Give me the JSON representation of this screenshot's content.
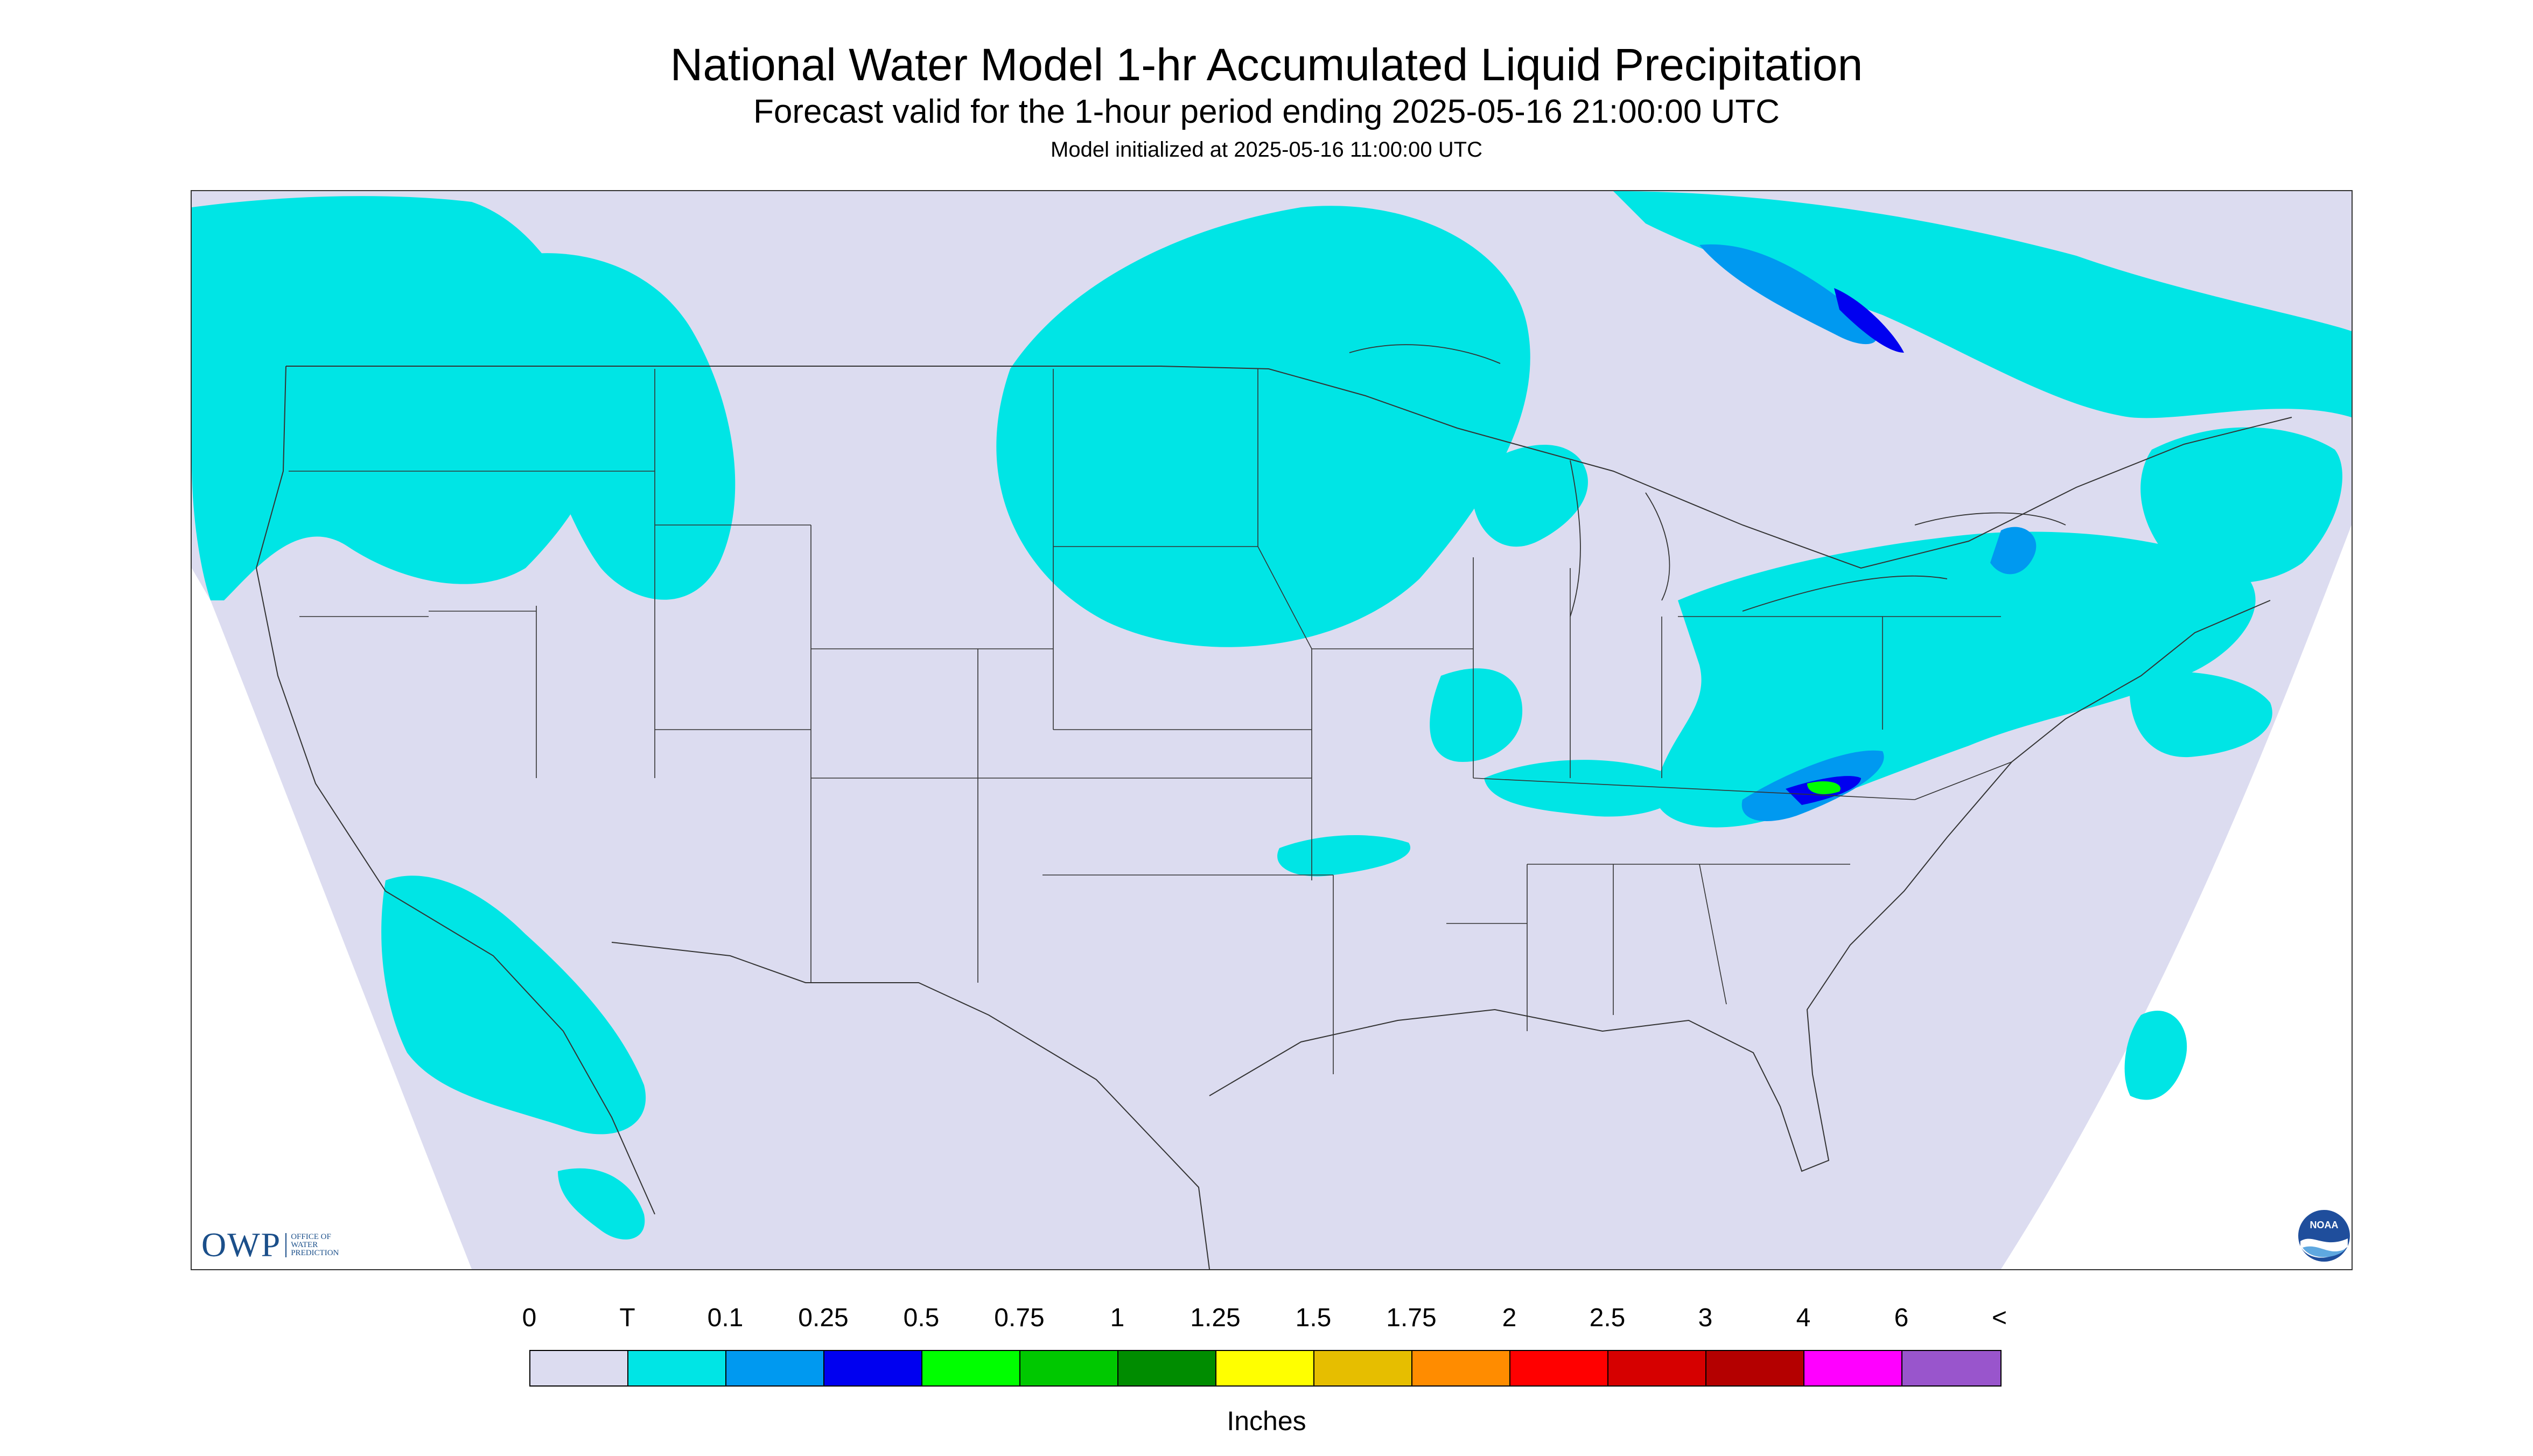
{
  "titles": {
    "main": "National Water Model 1-hr Accumulated Liquid Precipitation",
    "sub": "Forecast valid for the 1-hour period ending 2025-05-16 21:00:00 UTC",
    "init": "Model initialized at 2025-05-16 11:00:00 UTC"
  },
  "logos": {
    "owp_mark": "OWP",
    "owp_text": "OFFICE OF WATER PREDICTION",
    "noaa_text": "NOAA"
  },
  "colors": {
    "domain_fill": "#dcdcf0",
    "state_lines": "#333333",
    "precip_trace": "#00e5e5"
  },
  "legend": {
    "ticks": [
      "0",
      "T",
      "0.1",
      "0.25",
      "0.5",
      "0.75",
      "1",
      "1.25",
      "1.5",
      "1.75",
      "2",
      "2.5",
      "3",
      "4",
      "6",
      "<"
    ],
    "colors": [
      "#dcdcf0",
      "#00e5e5",
      "#0099f0",
      "#0000f0",
      "#00ff00",
      "#00c800",
      "#008c00",
      "#ffff00",
      "#e6be00",
      "#ff8c00",
      "#ff0000",
      "#d60000",
      "#b40000",
      "#ff00ff",
      "#9955cc"
    ],
    "units": "Inches"
  }
}
